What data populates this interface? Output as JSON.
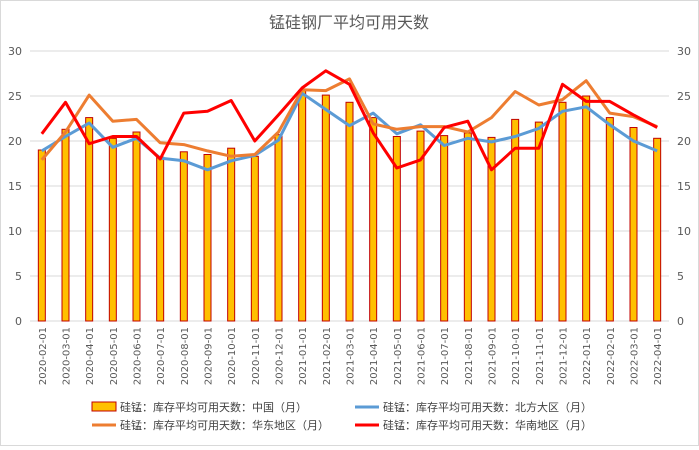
{
  "chart_data": {
    "type": "bar",
    "title": "锰硅钢厂平均可用天数",
    "categories": [
      "2020-02-01",
      "2020-03-01",
      "2020-04-01",
      "2020-05-01",
      "2020-06-01",
      "2020-07-01",
      "2020-08-01",
      "2020-09-01",
      "2020-10-01",
      "2020-11-01",
      "2020-12-01",
      "2021-01-01",
      "2021-02-01",
      "2021-03-01",
      "2021-04-01",
      "2021-05-01",
      "2021-06-01",
      "2021-07-01",
      "2021-08-01",
      "2021-09-01",
      "2021-10-01",
      "2021-11-01",
      "2021-12-01",
      "2022-01-01",
      "2022-02-01",
      "2022-03-01",
      "2022-04-01"
    ],
    "ylim": [
      0,
      30
    ],
    "yticks": [
      0,
      5,
      10,
      15,
      20,
      25,
      30
    ],
    "grid": true,
    "legend_position": "bottom",
    "series": [
      {
        "name": "硅锰：库存平均可用天数：中国（月）",
        "kind": "bar",
        "color": "#FFC000",
        "edge": "#C00000",
        "values": [
          19.0,
          21.3,
          22.6,
          20.3,
          21.0,
          18.2,
          18.8,
          18.5,
          19.2,
          18.3,
          20.7,
          25.6,
          25.1,
          24.3,
          22.6,
          20.5,
          21.1,
          20.6,
          20.9,
          20.4,
          22.4,
          22.1,
          24.3,
          25.0,
          22.6,
          21.5,
          20.3
        ]
      },
      {
        "name": "硅锰：库存平均可用天数：北方大区（月）",
        "kind": "line",
        "color": "#5B9BD5",
        "values": [
          18.9,
          20.5,
          22.0,
          19.3,
          20.3,
          18.1,
          17.8,
          16.8,
          17.8,
          18.4,
          20.1,
          25.3,
          23.5,
          21.7,
          23.1,
          20.8,
          21.8,
          19.5,
          20.3,
          19.9,
          20.5,
          21.4,
          23.3,
          23.8,
          21.8,
          20.0,
          18.9
        ]
      },
      {
        "name": "硅锰：库存平均可用天数：华东地区（月）",
        "kind": "line",
        "color": "#ED7D31",
        "values": [
          17.9,
          21.0,
          25.1,
          22.2,
          22.4,
          19.8,
          19.6,
          18.9,
          18.3,
          18.5,
          21.0,
          25.7,
          25.6,
          26.9,
          21.9,
          21.3,
          21.6,
          21.6,
          21.0,
          22.6,
          25.5,
          24.0,
          24.6,
          26.7,
          23.1,
          22.7,
          21.6
        ]
      },
      {
        "name": "硅锰：库存平均可用天数：华南地区（月）",
        "kind": "line",
        "color": "#FF0000",
        "values": [
          20.8,
          24.3,
          19.7,
          20.5,
          20.5,
          18.0,
          23.1,
          23.3,
          24.5,
          20.0,
          22.9,
          25.9,
          27.8,
          26.3,
          20.9,
          17.0,
          17.9,
          21.5,
          22.2,
          16.8,
          19.2,
          19.2,
          26.3,
          24.4,
          24.4,
          22.9,
          21.5
        ]
      }
    ]
  }
}
